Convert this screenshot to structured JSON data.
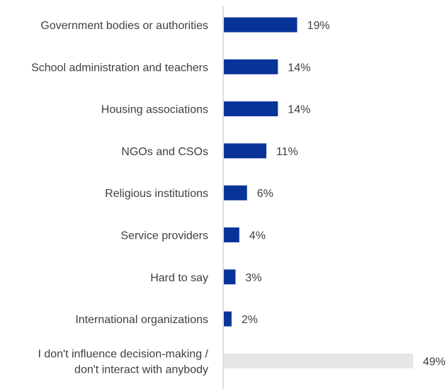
{
  "chart_data": {
    "type": "bar",
    "orientation": "horizontal",
    "categories": [
      "Government bodies or authorities",
      "School administration and teachers",
      "Housing associations",
      "NGOs and CSOs",
      "Religious institutions",
      "Service providers",
      "Hard to say",
      "International organizations",
      "I don't influence decision-making / don't interact with anybody"
    ],
    "category_lines": [
      [
        "Government bodies or authorities"
      ],
      [
        "School administration and teachers"
      ],
      [
        "Housing associations"
      ],
      [
        "NGOs and CSOs"
      ],
      [
        "Religious institutions"
      ],
      [
        "Service providers"
      ],
      [
        "Hard to say"
      ],
      [
        "International organizations"
      ],
      [
        "I don't influence decision-making /",
        "don't interact with anybody"
      ]
    ],
    "values": [
      19,
      14,
      14,
      11,
      6,
      4,
      3,
      2,
      49
    ],
    "value_labels": [
      "19%",
      "14%",
      "14%",
      "11%",
      "6%",
      "4%",
      "3%",
      "2%",
      "49%"
    ],
    "bar_colors": [
      "#0a3399",
      "#0a3399",
      "#0a3399",
      "#0a3399",
      "#0a3399",
      "#0a3399",
      "#0a3399",
      "#0a3399",
      "#e6e6e6"
    ],
    "axis_color": "#bfbfbf",
    "text_color": "#3f3f3f",
    "xlim": [
      0,
      49
    ],
    "grid": false,
    "legend": "none"
  }
}
